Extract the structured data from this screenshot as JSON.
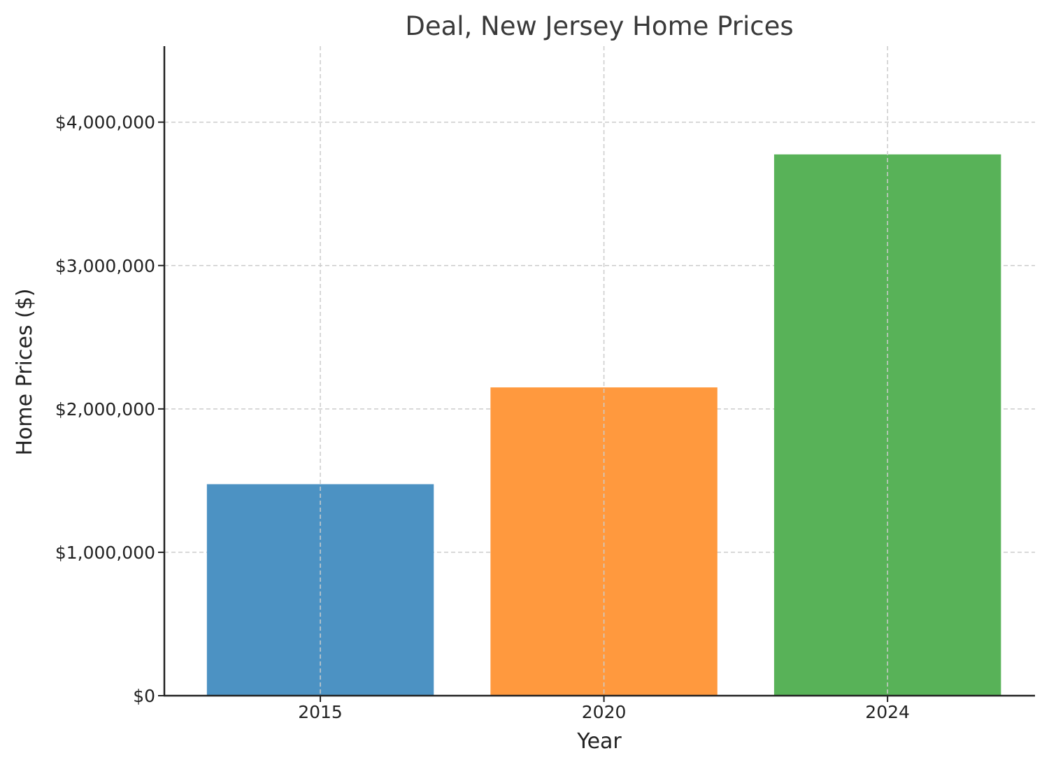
{
  "chart_data": {
    "type": "bar",
    "title": "Deal, New Jersey Home Prices",
    "xlabel": "Year",
    "ylabel": "Home Prices ($)",
    "categories": [
      "2015",
      "2020",
      "2024"
    ],
    "values": [
      1475000,
      2150000,
      3775000
    ],
    "colors": [
      "#4c92c3",
      "#ff993e",
      "#58b258"
    ],
    "ylim": [
      0,
      4530000
    ],
    "yticks": [
      0,
      1000000,
      2000000,
      3000000,
      4000000
    ],
    "ytick_labels": [
      "$0",
      "$1,000,000",
      "$2,000,000",
      "$3,000,000",
      "$4,000,000"
    ],
    "grid": true,
    "legend": "none"
  }
}
